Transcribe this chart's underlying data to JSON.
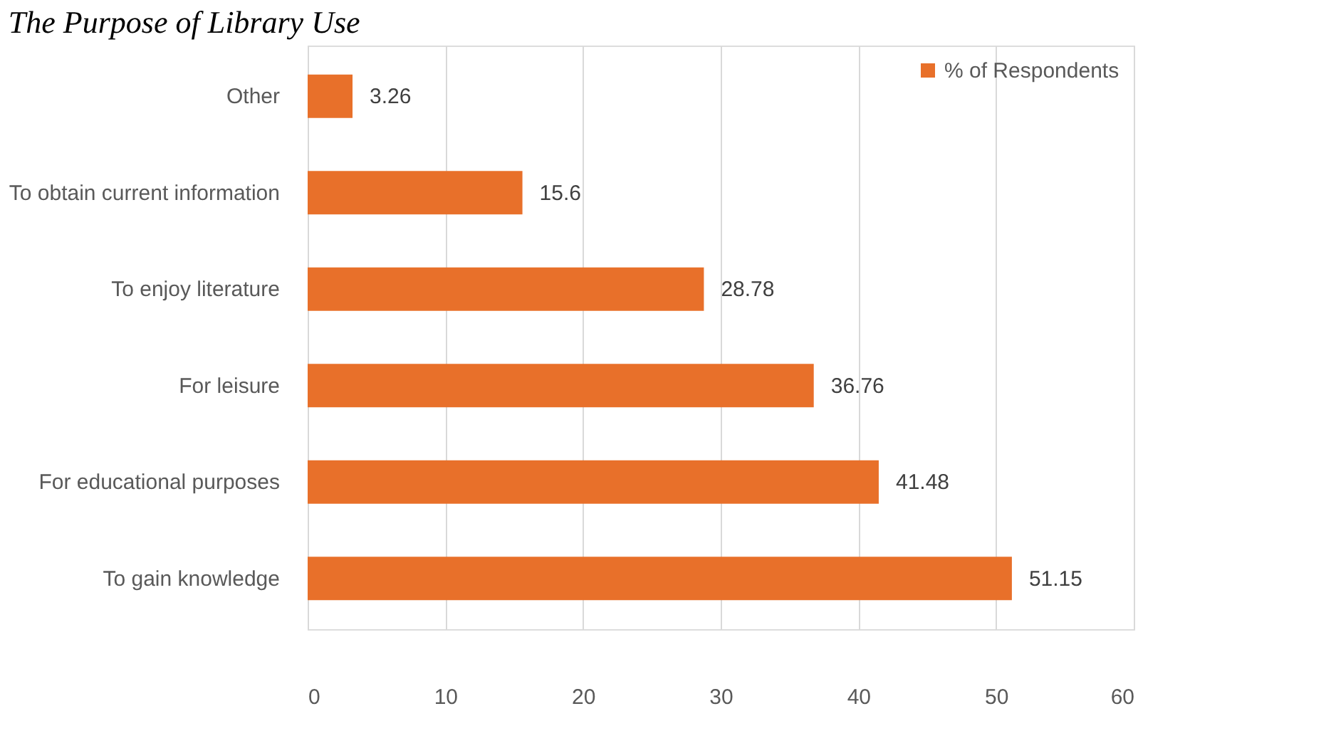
{
  "chart_data": {
    "type": "bar",
    "orientation": "horizontal",
    "title": "The Purpose of Library Use",
    "categories": [
      "Other",
      "To obtain current information",
      "To enjoy literature",
      "For leisure",
      "For educational purposes",
      "To gain knowledge"
    ],
    "series": [
      {
        "name": "% of Respondents",
        "color": "#e8702a",
        "values": [
          3.26,
          15.6,
          28.78,
          36.76,
          41.48,
          51.15
        ]
      }
    ],
    "xlim": [
      0,
      60
    ],
    "xticks": [
      0,
      10,
      20,
      30,
      40,
      50,
      60
    ],
    "grid": "x",
    "legend": "top right",
    "data_labels": true
  }
}
